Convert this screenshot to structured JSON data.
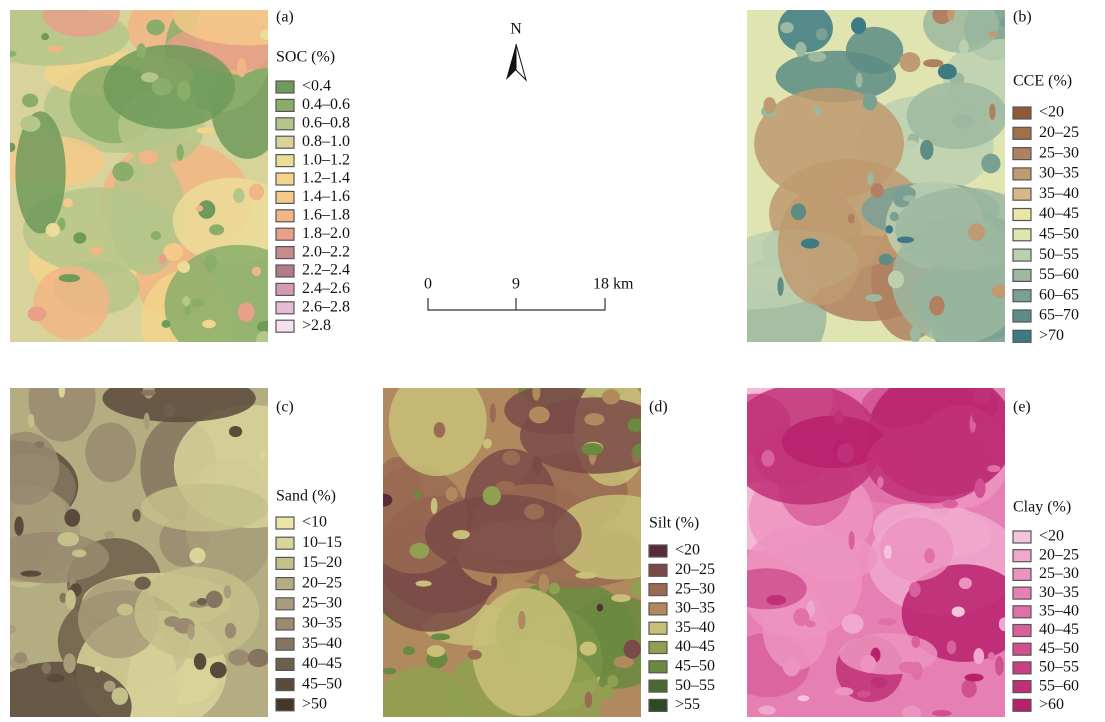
{
  "north_arrow": {
    "label": "N"
  },
  "scale_bar": {
    "labels": [
      "0",
      "9",
      "18 km"
    ]
  },
  "panels": [
    {
      "label": "(a)",
      "legend": {
        "title": "SOC (%)",
        "items": [
          {
            "label": "<0.4",
            "color": "#6f9a5a"
          },
          {
            "label": "0.4–0.6",
            "color": "#8aae6a"
          },
          {
            "label": "0.6–0.8",
            "color": "#b5c68a"
          },
          {
            "label": "0.8–1.0",
            "color": "#d8d39a"
          },
          {
            "label": "1.0–1.2",
            "color": "#ecdc9a"
          },
          {
            "label": "1.2–1.4",
            "color": "#f2d48a"
          },
          {
            "label": "1.4–1.6",
            "color": "#f5c98a"
          },
          {
            "label": "1.6–1.8",
            "color": "#f2b585"
          },
          {
            "label": "1.8–2.0",
            "color": "#e8a088"
          },
          {
            "label": "2.0–2.2",
            "color": "#c98a8a"
          },
          {
            "label": "2.2–2.4",
            "color": "#b57a8a"
          },
          {
            "label": "2.4–2.6",
            "color": "#d49ab5"
          },
          {
            "label": "2.6–2.8",
            "color": "#e6bcd6"
          },
          {
            "label": ">2.8",
            "color": "#f6e0ef"
          }
        ]
      }
    },
    {
      "label": "(b)",
      "legend": {
        "title": "CCE (%)",
        "items": [
          {
            "label": "<20",
            "color": "#8e5a3a"
          },
          {
            "label": "20–25",
            "color": "#a0704a"
          },
          {
            "label": "25–30",
            "color": "#b08060"
          },
          {
            "label": "30–35",
            "color": "#c09a70"
          },
          {
            "label": "35–40",
            "color": "#d8b888"
          },
          {
            "label": "40–45",
            "color": "#ede4a8"
          },
          {
            "label": "45–50",
            "color": "#dfe4b0"
          },
          {
            "label": "50–55",
            "color": "#bcd0b0"
          },
          {
            "label": "55–60",
            "color": "#9cb8a0"
          },
          {
            "label": "60–65",
            "color": "#7aa094"
          },
          {
            "label": "65–70",
            "color": "#5c8c84"
          },
          {
            "label": ">70",
            "color": "#3c7a84"
          }
        ]
      }
    },
    {
      "label": "(c)",
      "legend": {
        "title": "Sand (%)",
        "items": [
          {
            "label": "<10",
            "color": "#ece5a8"
          },
          {
            "label": "10–15",
            "color": "#d8d49a"
          },
          {
            "label": "15–20",
            "color": "#c4c08a"
          },
          {
            "label": "20–25",
            "color": "#b5ad82"
          },
          {
            "label": "25–30",
            "color": "#a89c7a"
          },
          {
            "label": "30–35",
            "color": "#998a70"
          },
          {
            "label": "35–40",
            "color": "#857560"
          },
          {
            "label": "40–45",
            "color": "#6e5e4c"
          },
          {
            "label": "45–50",
            "color": "#5a4a3c"
          },
          {
            "label": ">50",
            "color": "#463628"
          }
        ]
      }
    },
    {
      "label": "(d)",
      "legend": {
        "title": "Silt (%)",
        "items": [
          {
            "label": "<20",
            "color": "#5a2a3a"
          },
          {
            "label": "20–25",
            "color": "#7a4a48"
          },
          {
            "label": "25–30",
            "color": "#9a6a52"
          },
          {
            "label": "30–35",
            "color": "#b08a5e"
          },
          {
            "label": "35–40",
            "color": "#c8c078"
          },
          {
            "label": "40–45",
            "color": "#90a050"
          },
          {
            "label": "45–50",
            "color": "#6a8a40"
          },
          {
            "label": "50–55",
            "color": "#4a6a30"
          },
          {
            "label": ">55",
            "color": "#2e4a22"
          }
        ]
      }
    },
    {
      "label": "(e)",
      "legend": {
        "title": "Clay (%)",
        "items": [
          {
            "label": "<20",
            "color": "#f4c4dc"
          },
          {
            "label": "20–25",
            "color": "#f0a8cc"
          },
          {
            "label": "25–30",
            "color": "#ec94c0"
          },
          {
            "label": "30–35",
            "color": "#e680b4"
          },
          {
            "label": "35–40",
            "color": "#e070a8"
          },
          {
            "label": "40–45",
            "color": "#d8609c"
          },
          {
            "label": "45–50",
            "color": "#d05090"
          },
          {
            "label": "50–55",
            "color": "#c84084"
          },
          {
            "label": "55–60",
            "color": "#c03078"
          },
          {
            "label": ">60",
            "color": "#b8206c"
          }
        ]
      }
    }
  ]
}
